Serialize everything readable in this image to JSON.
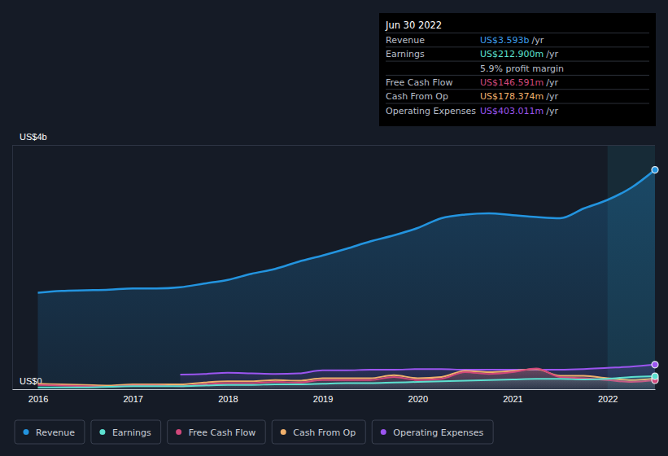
{
  "chart_data": {
    "type": "line",
    "x": [
      2016,
      2016.25,
      2016.5,
      2016.75,
      2017,
      2017.25,
      2017.5,
      2017.75,
      2018,
      2018.25,
      2018.5,
      2018.75,
      2019,
      2019.25,
      2019.5,
      2019.75,
      2020,
      2020.25,
      2020.5,
      2020.75,
      2021,
      2021.25,
      2021.5,
      2021.75,
      2022,
      2022.25,
      2022.5
    ],
    "xlim": [
      2015.73,
      2022.5
    ],
    "xticks": [
      2016,
      2017,
      2018,
      2019,
      2020,
      2021,
      2022
    ],
    "ylim": [
      0,
      4
    ],
    "yticks": [
      {
        "value": 0,
        "label": "US$0"
      },
      {
        "value": 4,
        "label": "US$4b"
      }
    ],
    "grid": true,
    "legend": "bottom",
    "series": [
      {
        "name": "Revenue",
        "color": "#2394df",
        "values": [
          1.58,
          1.61,
          1.62,
          1.63,
          1.65,
          1.65,
          1.67,
          1.73,
          1.79,
          1.89,
          1.97,
          2.09,
          2.19,
          2.3,
          2.42,
          2.52,
          2.64,
          2.8,
          2.86,
          2.88,
          2.85,
          2.82,
          2.8,
          2.96,
          3.1,
          3.3,
          3.593
        ]
      },
      {
        "name": "Earnings",
        "color": "#5ce0d0",
        "values": [
          0.03,
          0.03,
          0.03,
          0.04,
          0.05,
          0.05,
          0.05,
          0.06,
          0.07,
          0.07,
          0.08,
          0.08,
          0.09,
          0.1,
          0.1,
          0.11,
          0.12,
          0.13,
          0.14,
          0.15,
          0.16,
          0.17,
          0.17,
          0.16,
          0.17,
          0.2,
          0.2129
        ]
      },
      {
        "name": "Free Cash Flow",
        "color": "#d1487b",
        "values": [
          0.07,
          0.06,
          0.05,
          0.04,
          0.06,
          0.06,
          0.05,
          0.08,
          0.1,
          0.1,
          0.12,
          0.11,
          0.15,
          0.15,
          0.15,
          0.2,
          0.15,
          0.17,
          0.28,
          0.25,
          0.28,
          0.34,
          0.2,
          0.18,
          0.15,
          0.12,
          0.1466
        ]
      },
      {
        "name": "Cash From Op",
        "color": "#f0b06c",
        "values": [
          0.09,
          0.08,
          0.07,
          0.06,
          0.08,
          0.08,
          0.08,
          0.11,
          0.13,
          0.13,
          0.15,
          0.14,
          0.18,
          0.18,
          0.18,
          0.23,
          0.18,
          0.2,
          0.3,
          0.28,
          0.3,
          0.33,
          0.22,
          0.22,
          0.18,
          0.15,
          0.1784
        ]
      },
      {
        "name": "Operating Expenses",
        "color": "#9b55f0",
        "values": [
          null,
          null,
          null,
          null,
          null,
          null,
          0.24,
          0.25,
          0.27,
          0.26,
          0.25,
          0.26,
          0.31,
          0.31,
          0.32,
          0.32,
          0.33,
          0.33,
          0.32,
          0.32,
          0.32,
          0.32,
          0.32,
          0.33,
          0.35,
          0.37,
          0.403
        ]
      }
    ],
    "annotation": {
      "title": "Jun 30 2022",
      "rows": [
        {
          "label": "Revenue",
          "value": "US$3.593b",
          "unit": "/yr",
          "color": "#3d9be9"
        },
        {
          "label": "Earnings",
          "value": "US$212.900m",
          "unit": "/yr",
          "color": "#5ce0d0"
        },
        {
          "value": "5.9% profit margin"
        },
        {
          "label": "Free Cash Flow",
          "value": "US$146.591m",
          "unit": "/yr",
          "color": "#d1487b"
        },
        {
          "label": "Cash From Op",
          "value": "US$178.374m",
          "unit": "/yr",
          "color": "#f0b06c"
        },
        {
          "label": "Operating Expenses",
          "value": "US$403.011m",
          "unit": "/yr",
          "color": "#9b55f0"
        }
      ]
    }
  }
}
